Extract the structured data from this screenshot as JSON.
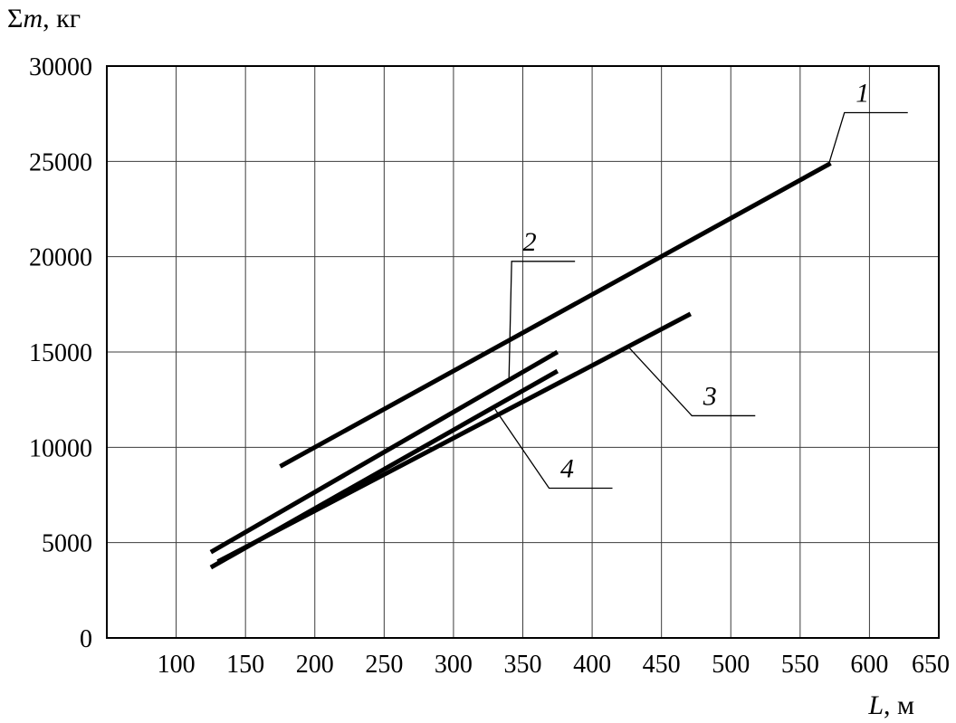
{
  "chart_data": {
    "type": "line",
    "title": "",
    "ylabel": "Σm, кг",
    "xlabel": "L, м",
    "ylabel_parts": {
      "prefix": "Σ",
      "symbol": "m",
      "suffix": ", кг"
    },
    "xlabel_parts": {
      "symbol": "L",
      "suffix": ", м"
    },
    "xlim": [
      50,
      650
    ],
    "ylim": [
      0,
      30000
    ],
    "x_ticks": [
      100,
      150,
      200,
      250,
      300,
      350,
      400,
      450,
      500,
      550,
      600,
      650
    ],
    "y_ticks": [
      0,
      5000,
      10000,
      15000,
      20000,
      25000,
      30000
    ],
    "grid": true,
    "legend_position": "inline-callouts",
    "line_color": "#000000",
    "series": [
      {
        "name": "1",
        "points": [
          [
            175,
            9000
          ],
          [
            572,
            24900
          ]
        ]
      },
      {
        "name": "2",
        "points": [
          [
            125,
            4500
          ],
          [
            375,
            15000
          ]
        ]
      },
      {
        "name": "3",
        "points": [
          [
            130,
            4000
          ],
          [
            471,
            17000
          ]
        ]
      },
      {
        "name": "4",
        "points": [
          [
            125,
            3700
          ],
          [
            375,
            14000
          ]
        ]
      }
    ],
    "callouts": [
      {
        "label": "1",
        "label_at": [
          595,
          28600
        ],
        "target": [
          570,
          24700
        ]
      },
      {
        "label": "2",
        "label_at": [
          355,
          20800
        ],
        "target": [
          340,
          13600
        ]
      },
      {
        "label": "3",
        "label_at": [
          485,
          12700
        ],
        "target": [
          427,
          15200
        ]
      },
      {
        "label": "4",
        "label_at": [
          382,
          8900
        ],
        "target": [
          330,
          12000
        ]
      }
    ]
  }
}
